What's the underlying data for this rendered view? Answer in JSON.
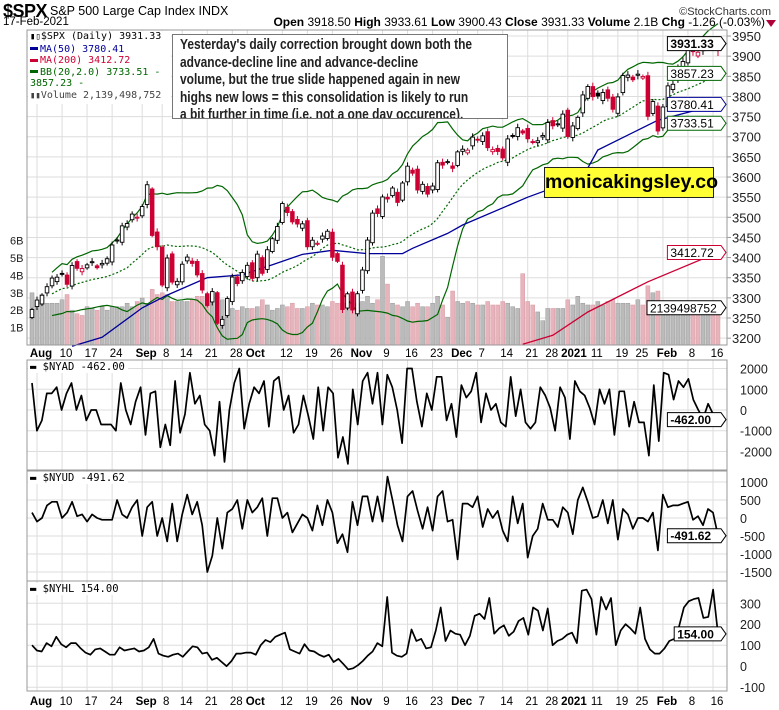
{
  "header": {
    "symbol": "$SPX",
    "name": "S&P 500 Large Cap Index  INDX",
    "brand": "©StockCharts.com",
    "date": "17-Feb-2021",
    "open_label": "Open",
    "open": "3918.50",
    "high_label": "High",
    "high": "3933.61",
    "low_label": "Low",
    "low": "3900.43",
    "close_label": "Close",
    "close": "3931.33",
    "volume_label": "Volume",
    "volume": "2.1B",
    "chg_label": "Chg",
    "chg": "-1.26 (-0.03%)"
  },
  "legend": {
    "spx": "$SPX (Daily) 3931.33",
    "ma50": "MA(50) 3780.41",
    "ma200": "MA(200) 3412.72",
    "bb": "BB(20,2.0) 3733.51 - 3857.23 -",
    "volume": "Volume 2,139,498,752"
  },
  "annotation": {
    "lines": [
      "Yesterday's daily correction brought down both the",
      "advance-decline line and advance-decline",
      "volume, but the true slide happened again in new",
      "highs new lows = this consolidation is likely to run",
      "a bit further in time (i.e. not a one day occurence)."
    ]
  },
  "watermark": "monicakingsley.co",
  "colors": {
    "up": "#000000",
    "down": "#cc0033",
    "ma50": "#000099",
    "ma200": "#cc0033",
    "bb": "#006600",
    "vol_up": "#bbbbbb",
    "vol_down": "#e8b4bc",
    "grid": "#dddddd"
  },
  "chart_data": {
    "type": "candlestick",
    "title": "$SPX S&P 500 Large Cap Index (Daily)",
    "x_ticks": [
      {
        "i": 1,
        "label": "Aug",
        "bold": true
      },
      {
        "i": 6,
        "label": "10"
      },
      {
        "i": 11,
        "label": "17"
      },
      {
        "i": 16,
        "label": "24"
      },
      {
        "i": 22,
        "label": "Sep",
        "bold": true
      },
      {
        "i": 26,
        "label": "8"
      },
      {
        "i": 30,
        "label": "14"
      },
      {
        "i": 35,
        "label": "21"
      },
      {
        "i": 40,
        "label": "28"
      },
      {
        "i": 43,
        "label": "Oct",
        "bold": true
      },
      {
        "i": 50,
        "label": "12"
      },
      {
        "i": 55,
        "label": "19"
      },
      {
        "i": 60,
        "label": "26"
      },
      {
        "i": 65,
        "label": "Nov",
        "bold": true
      },
      {
        "i": 70,
        "label": "9"
      },
      {
        "i": 75,
        "label": "16"
      },
      {
        "i": 80,
        "label": "23"
      },
      {
        "i": 85,
        "label": "Dec",
        "bold": true
      },
      {
        "i": 89,
        "label": "7"
      },
      {
        "i": 94,
        "label": "14"
      },
      {
        "i": 99,
        "label": "21"
      },
      {
        "i": 103,
        "label": "28"
      },
      {
        "i": 107,
        "label": "2021",
        "bold": true
      },
      {
        "i": 112,
        "label": "11"
      },
      {
        "i": 117,
        "label": "19"
      },
      {
        "i": 121,
        "label": "25"
      },
      {
        "i": 126,
        "label": "Feb",
        "bold": true
      },
      {
        "i": 131,
        "label": "8"
      },
      {
        "i": 136,
        "label": "16"
      }
    ],
    "price": {
      "ylim": [
        3183,
        3965
      ],
      "y_ticks": [
        3200,
        3250,
        3300,
        3350,
        3400,
        3450,
        3500,
        3550,
        3600,
        3650,
        3700,
        3750,
        3800,
        3850,
        3900,
        3950
      ],
      "close": [
        3271.12,
        3294.61,
        3306.51,
        3327.77,
        3349.16,
        3351.28,
        3360.47,
        3333.69,
        3380.35,
        3373.43,
        3372.85,
        3381.99,
        3389.78,
        3374.85,
        3385.51,
        3397.16,
        3431.28,
        3443.62,
        3478.73,
        3484.55,
        3508.01,
        3500.31,
        3526.65,
        3580.84,
        3455.06,
        3426.96,
        3331.84,
        3398.96,
        3339.19,
        3340.97,
        3383.54,
        3401.2,
        3385.49,
        3357.01,
        3319.47,
        3281.06,
        3315.57,
        3236.92,
        3246.59,
        3298.46,
        3351.6,
        3335.47,
        3363.0,
        3380.8,
        3348.42,
        3408.6,
        3360.97,
        3419.44,
        3446.83,
        3477.14,
        3534.22,
        3511.93,
        3488.67,
        3483.34,
        3483.81,
        3426.92,
        3443.12,
        3435.56,
        3453.49,
        3465.39,
        3400.97,
        3390.68,
        3271.03,
        3310.11,
        3269.96,
        3310.24,
        3369.16,
        3443.44,
        3510.45,
        3509.44,
        3550.5,
        3545.53,
        3572.66,
        3537.01,
        3585.15,
        3626.91,
        3609.53,
        3567.79,
        3581.87,
        3557.54,
        3577.59,
        3635.41,
        3629.65,
        3638.35,
        3621.63,
        3662.45,
        3669.01,
        3666.72,
        3699.12,
        3691.96,
        3702.25,
        3672.82,
        3668.1,
        3663.46,
        3647.49,
        3694.62,
        3701.17,
        3722.48,
        3709.41,
        3694.92,
        3687.26,
        3690.01,
        3703.06,
        3735.36,
        3727.04,
        3732.04,
        3756.07,
        3700.65,
        3726.86,
        3748.14,
        3803.79,
        3824.68,
        3799.61,
        3801.19,
        3809.84,
        3795.54,
        3768.25,
        3798.91,
        3851.85,
        3853.07,
        3841.47,
        3855.36,
        3849.62,
        3750.77,
        3787.38,
        3714.24,
        3773.86,
        3826.31,
        3830.17,
        3871.74,
        3886.83,
        3915.59,
        3911.23,
        3909.88,
        3916.38,
        3934.83,
        3932.59,
        3931.33
      ],
      "last_ohlc": {
        "open": 3918.5,
        "high": 3933.61,
        "low": 3900.43,
        "close": 3931.33
      },
      "ma50": [
        [
          8,
          3180
        ],
        [
          14,
          3202
        ],
        [
          22,
          3275
        ],
        [
          27,
          3307
        ],
        [
          35,
          3350
        ],
        [
          42,
          3357
        ],
        [
          48,
          3382
        ],
        [
          54,
          3408
        ],
        [
          60,
          3418
        ],
        [
          67,
          3410
        ],
        [
          74,
          3410
        ],
        [
          76,
          3423
        ],
        [
          83,
          3460
        ],
        [
          86,
          3481
        ],
        [
          99,
          3550
        ],
        [
          110,
          3600
        ],
        [
          113,
          3667
        ],
        [
          125,
          3741
        ],
        [
          137,
          3780.41
        ]
      ],
      "ma200": [
        [
          98,
          3185
        ],
        [
          104,
          3207
        ],
        [
          111,
          3265
        ],
        [
          123,
          3340
        ],
        [
          137,
          3412.72
        ]
      ],
      "tags": [
        {
          "text": "3931.33",
          "value": 3931.33,
          "color": "#000000",
          "bold": true
        },
        {
          "text": "3857.23",
          "value": 3857.23,
          "color": "#006600"
        },
        {
          "text": "3780.41",
          "value": 3780.41,
          "color": "#000099"
        },
        {
          "text": "3733.51",
          "value": 3733.51,
          "color": "#006600"
        },
        {
          "text": "3412.72",
          "value": 3412.72,
          "color": "#cc0033"
        }
      ]
    },
    "volume": {
      "unit": "B",
      "ylim": [
        0,
        18.1
      ],
      "y_ticks": [
        {
          "v": 1,
          "label": "1B"
        },
        {
          "v": 2,
          "label": "2B"
        },
        {
          "v": 3,
          "label": "3B"
        },
        {
          "v": 4,
          "label": "4B"
        },
        {
          "v": 5,
          "label": "5B"
        },
        {
          "v": 6,
          "label": "6B"
        }
      ],
      "values": [
        3.0,
        2.5,
        2.9,
        2.4,
        2.4,
        2.4,
        2.6,
        2.9,
        2.0,
        1.8,
        1.7,
        2.2,
        2.1,
        2.0,
        2.2,
        2.0,
        2.2,
        2.2,
        2.2,
        2.4,
        2.2,
        2.5,
        2.7,
        2.4,
        3.2,
        2.9,
        3.0,
        2.9,
        2.5,
        2.5,
        2.5,
        2.5,
        2.6,
        2.8,
        2.8,
        2.9,
        2.8,
        2.8,
        2.6,
        2.2,
        2.1,
        2.0,
        2.2,
        2.1,
        2.1,
        2.2,
        2.6,
        2.3,
        2.0,
        2.1,
        2.3,
        2.2,
        2.4,
        2.1,
        2.1,
        2.2,
        2.4,
        2.3,
        2.3,
        2.2,
        2.5,
        2.4,
        2.4,
        2.4,
        2.8,
        2.4,
        2.5,
        2.8,
        2.4,
        2.6,
        5.1,
        3.5,
        2.4,
        2.3,
        2.2,
        2.5,
        2.2,
        2.4,
        2.2,
        2.2,
        2.4,
        2.8,
        2.3,
        1.6,
        3.1,
        2.5,
        2.4,
        2.5,
        2.4,
        2.3,
        2.3,
        2.5,
        2.3,
        2.3,
        2.5,
        2.4,
        2.2,
        2.1,
        4.1,
        2.5,
        2.3,
        1.9,
        1.4,
        2.1,
        2.1,
        2.1,
        2.1,
        2.6,
        2.3,
        2.8,
        2.4,
        2.3,
        2.3,
        2.5,
        2.3,
        2.5,
        2.6,
        2.4,
        2.4,
        2.4,
        2.3,
        2.6,
        2.3,
        3.4,
        3.0,
        3.1,
        2.4,
        2.3,
        2.3,
        2.3,
        2.2,
        2.2,
        2.2,
        2.1,
        2.2,
        2.0,
        2.2,
        2.14
      ],
      "tag": "2139498752"
    },
    "indicators": [
      {
        "key": "nyad",
        "legend": "$NYAD -462.00",
        "tag": "-462.00",
        "ylim": [
          -2892,
          2410
        ],
        "y_ticks": [
          {
            "v": 2000,
            "label": "2000"
          },
          {
            "v": 1000,
            "label": "1000"
          },
          {
            "v": 0,
            "label": "0"
          },
          {
            "v": -1000,
            "label": "-1000"
          },
          {
            "v": -2000,
            "label": "-2000"
          }
        ],
        "values": [
          1300,
          -1000,
          -500,
          800,
          800,
          1100,
          0,
          800,
          1300,
          0,
          700,
          -500,
          0,
          0,
          -700,
          -700,
          -700,
          -1000,
          1300,
          0,
          -700,
          400,
          1100,
          -1200,
          800,
          900,
          -1800,
          -700,
          -1700,
          1400,
          -1100,
          -200,
          1800,
          300,
          700,
          -700,
          -1000,
          -2200,
          400,
          -2500,
          0,
          1300,
          2000,
          -900,
          300,
          1100,
          800,
          1400,
          -800,
          1400,
          1600,
          0,
          700,
          -1100,
          -700,
          700,
          -300,
          -1400,
          1100,
          -1000,
          1100,
          800,
          -2300,
          -1300,
          -2600,
          1000,
          -700,
          1400,
          1800,
          300,
          1800,
          -700,
          1700,
          1100,
          0,
          -1600,
          2000,
          2000,
          400,
          -800,
          800,
          0,
          1600,
          1600,
          -500,
          300,
          -1300,
          1200,
          600,
          900,
          1800,
          -600,
          800,
          0,
          300,
          -600,
          -800,
          1600,
          -300,
          1000,
          -600,
          -900,
          -600,
          1100,
          700,
          100,
          -1000,
          1100,
          600,
          -1400,
          1400,
          900,
          700,
          100,
          -700,
          1000,
          300,
          1000,
          -1200,
          900,
          900,
          -800,
          400,
          -600,
          -600,
          -2200,
          1200,
          -1500,
          1800,
          1700,
          500,
          1400,
          1100,
          1500,
          500,
          0,
          -400,
          300,
          -200,
          -462
        ]
      },
      {
        "key": "nyud",
        "legend": "$NYUD -491.62",
        "tag": "-491.62",
        "ylim": [
          -1750,
          1306
        ],
        "y_ticks": [
          {
            "v": 1000,
            "label": "1000"
          },
          {
            "v": 500,
            "label": "500"
          },
          {
            "v": 0,
            "label": "0"
          },
          {
            "v": -500,
            "label": "-500"
          },
          {
            "v": -1000,
            "label": "-1000"
          },
          {
            "v": -1500,
            "label": "-1500"
          }
        ],
        "values": [
          150,
          -100,
          0,
          350,
          450,
          450,
          0,
          150,
          450,
          50,
          100,
          -100,
          100,
          0,
          -50,
          -50,
          -50,
          500,
          100,
          0,
          300,
          500,
          -500,
          300,
          450,
          -500,
          0,
          -650,
          400,
          -650,
          100,
          650,
          100,
          450,
          -200,
          -1500,
          -1050,
          0,
          -850,
          150,
          250,
          500,
          -300,
          500,
          150,
          300,
          550,
          -500,
          550,
          550,
          0,
          150,
          -400,
          -150,
          100,
          0,
          -350,
          350,
          -200,
          500,
          150,
          -700,
          -450,
          -950,
          450,
          -200,
          600,
          600,
          -100,
          600,
          -100,
          1150,
          500,
          -200,
          -650,
          600,
          750,
          200,
          -300,
          300,
          -350,
          600,
          750,
          -100,
          -50,
          -1150,
          400,
          400,
          300,
          600,
          -250,
          250,
          0,
          200,
          -350,
          -650,
          600,
          -150,
          400,
          -1100,
          -500,
          -300,
          400,
          -50,
          -50,
          -250,
          300,
          150,
          -450,
          500,
          850,
          450,
          0,
          50,
          500,
          -150,
          500,
          -600,
          250,
          100,
          -300,
          0,
          0,
          -100,
          150,
          -900,
          650,
          300,
          350,
          350,
          400,
          450,
          -50,
          50,
          -200,
          250,
          150,
          -491.62
        ]
      },
      {
        "key": "nyhl",
        "legend": "$NYHL 154.00",
        "tag": "154.00",
        "ylim": [
          -118,
          406
        ],
        "y_ticks": [
          {
            "v": 300,
            "label": "300"
          },
          {
            "v": 200,
            "label": "200"
          },
          {
            "v": 100,
            "label": "100"
          },
          {
            "v": 0,
            "label": "0"
          },
          {
            "v": -100,
            "label": "-100"
          }
        ],
        "values": [
          100,
          75,
          70,
          110,
          95,
          140,
          105,
          90,
          110,
          110,
          85,
          65,
          55,
          80,
          85,
          70,
          55,
          55,
          90,
          75,
          80,
          85,
          70,
          75,
          90,
          130,
          60,
          50,
          45,
          55,
          60,
          45,
          70,
          95,
          90,
          60,
          65,
          30,
          40,
          20,
          0,
          25,
          60,
          60,
          65,
          65,
          55,
          100,
          125,
          115,
          140,
          150,
          160,
          80,
          70,
          60,
          105,
          75,
          70,
          55,
          45,
          55,
          20,
          35,
          10,
          -15,
          -10,
          5,
          25,
          50,
          70,
          110,
          95,
          330,
          65,
          50,
          45,
          60,
          175,
          120,
          130,
          85,
          90,
          170,
          280,
          120,
          170,
          155,
          150,
          100,
          145,
          240,
          250,
          225,
          325,
          155,
          180,
          195,
          145,
          165,
          215,
          230,
          150,
          280,
          265,
          170,
          275,
          100,
          120,
          130,
          150,
          160,
          110,
          360,
          365,
          320,
          150,
          330,
          270,
          325,
          100,
          170,
          200,
          180,
          155,
          280,
          130,
          80,
          60,
          60,
          85,
          120,
          130,
          190,
          280,
          310,
          320,
          325,
          230,
          235,
          365,
          154
        ]
      }
    ]
  }
}
